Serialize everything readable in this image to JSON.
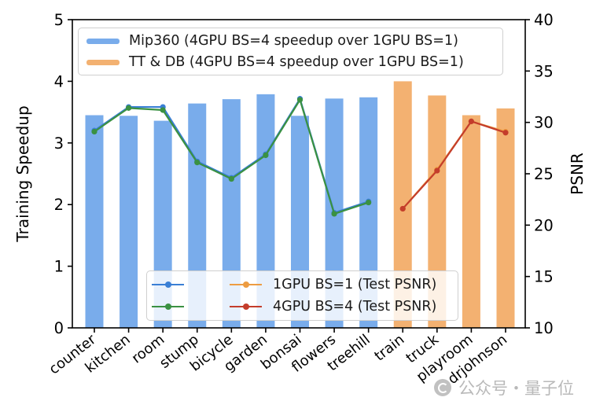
{
  "watermark": {
    "text": "公众号・量子位",
    "icon": "quantum-bit-badge"
  },
  "chart_data": {
    "type": "bar",
    "subtype": "grouped bars with dual-axis line overlay",
    "title": "",
    "categories": [
      "counter",
      "kitchen",
      "room",
      "stump",
      "bicycle",
      "garden",
      "bonsai",
      "flowers",
      "treehill",
      "train",
      "truck",
      "playroom",
      "drjohnson"
    ],
    "bar_groups": [
      {
        "name": "Mip360 (4GPU BS=4 speedup over 1GPU BS=1)",
        "color": "#79aceb",
        "start_index": 0,
        "values": [
          3.45,
          3.44,
          3.36,
          3.64,
          3.71,
          3.79,
          3.44,
          3.72,
          3.74
        ]
      },
      {
        "name": "TT & DB (4GPU BS=4 speedup over 1GPU BS=1)",
        "color": "#f3b171",
        "start_index": 9,
        "values": [
          4.0,
          3.77,
          3.45,
          3.56
        ]
      }
    ],
    "line_series": [
      {
        "name": "1GPU BS=1 (Test PSNR)",
        "scenes": "Mip360",
        "color": "#3a7fd5",
        "start_index": 0,
        "values": [
          29.2,
          31.5,
          31.5,
          26.2,
          24.6,
          26.9,
          32.3,
          21.2,
          22.3
        ]
      },
      {
        "name": "4GPU BS=4 (Test PSNR)",
        "scenes": "Mip360",
        "color": "#3a9142",
        "start_index": 0,
        "values": [
          29.1,
          31.4,
          31.2,
          26.1,
          24.5,
          26.8,
          32.2,
          21.1,
          22.2
        ]
      },
      {
        "name": "1GPU BS=1 (Test PSNR)",
        "scenes": "TT & DB",
        "color": "#ed9c42",
        "start_index": 9,
        "values": [
          21.6,
          25.4,
          30.1,
          29.1
        ]
      },
      {
        "name": "4GPU BS=4 (Test PSNR)",
        "scenes": "TT & DB",
        "color": "#c43d2b",
        "start_index": 9,
        "values": [
          21.6,
          25.3,
          30.1,
          29.0
        ]
      }
    ],
    "left_axis": {
      "label": "Training Speedup",
      "min": 0,
      "max": 5,
      "ticks": [
        0,
        1,
        2,
        3,
        4,
        5
      ]
    },
    "right_axis": {
      "label": "PSNR",
      "min": 10,
      "max": 40,
      "ticks": [
        10,
        15,
        20,
        25,
        30,
        35,
        40
      ]
    },
    "grid": "off",
    "legend_bars": {
      "position": "upper left",
      "items": [
        {
          "label": "Mip360 (4GPU BS=4 speedup over 1GPU BS=1)",
          "color": "#79aceb"
        },
        {
          "label": "TT & DB (4GPU BS=4 speedup over 1GPU BS=1)",
          "color": "#f3b171"
        }
      ]
    },
    "legend_lines": {
      "position": "lower center",
      "items": [
        {
          "label": "1GPU BS=1 (Test PSNR)",
          "colors": [
            "#3a7fd5",
            "#ed9c42"
          ]
        },
        {
          "label": "4GPU BS=4 (Test PSNR)",
          "colors": [
            "#3a9142",
            "#c43d2b"
          ]
        }
      ]
    }
  }
}
